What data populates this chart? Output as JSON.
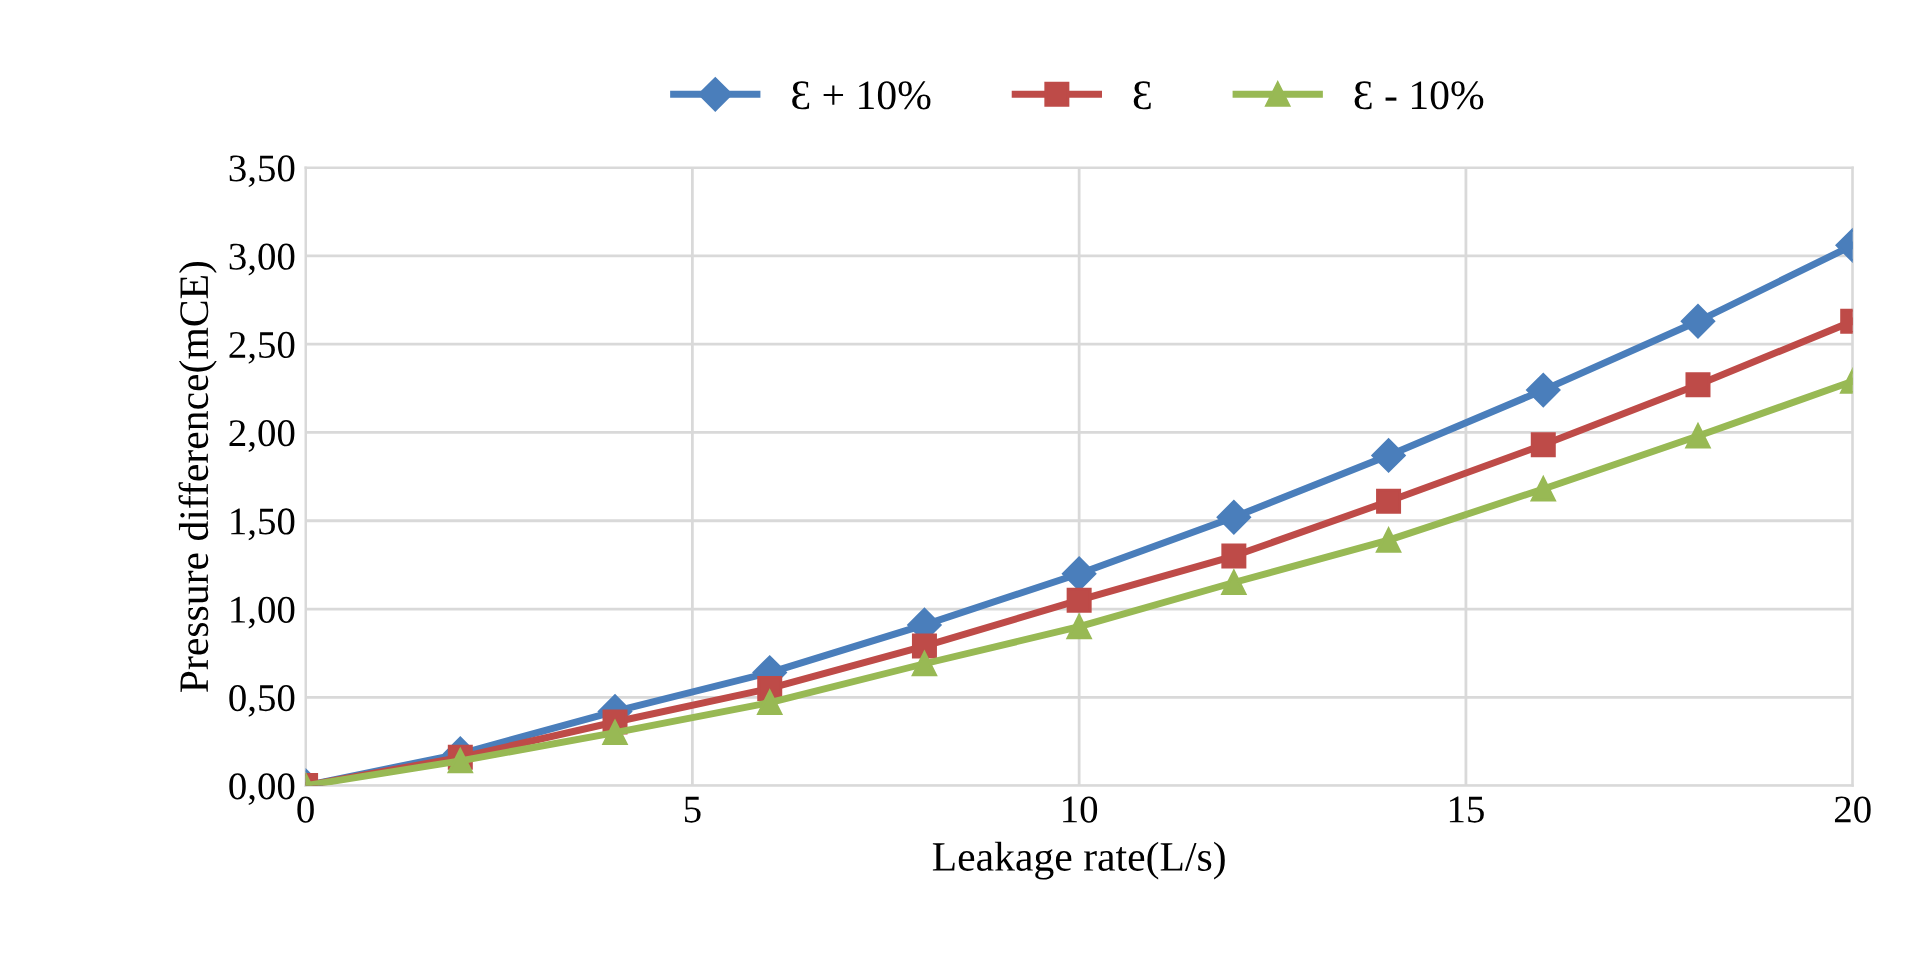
{
  "chart_data": {
    "type": "line",
    "xlabel": "Leakage rate(L/s)",
    "ylabel": "Pressure difference(mCE)",
    "x": [
      0,
      2,
      4,
      6,
      8,
      10,
      12,
      14,
      16,
      18,
      20
    ],
    "series": [
      {
        "name": "Ɛ + 10%",
        "color": "#4a7ebb",
        "marker": "diamond",
        "values": [
          0,
          0.18,
          0.42,
          0.64,
          0.91,
          1.2,
          1.52,
          1.87,
          2.24,
          2.63,
          3.06
        ]
      },
      {
        "name": "Ɛ",
        "color": "#be4b48",
        "marker": "square",
        "values": [
          0,
          0.16,
          0.36,
          0.55,
          0.79,
          1.05,
          1.3,
          1.61,
          1.93,
          2.27,
          2.63
        ]
      },
      {
        "name": "Ɛ - 10%",
        "color": "#98b954",
        "marker": "triangle",
        "values": [
          0,
          0.14,
          0.3,
          0.47,
          0.69,
          0.9,
          1.15,
          1.39,
          1.68,
          1.98,
          2.29
        ]
      }
    ],
    "xlim": [
      0,
      20
    ],
    "xticks": [
      0,
      5,
      10,
      15,
      20
    ],
    "ylim": [
      0,
      3.5
    ],
    "yticks": [
      {
        "value": 0,
        "label": "0,00"
      },
      {
        "value": 0.5,
        "label": "0,50"
      },
      {
        "value": 1,
        "label": "1,00"
      },
      {
        "value": 1.5,
        "label": "1,50"
      },
      {
        "value": 2,
        "label": "2,00"
      },
      {
        "value": 2.5,
        "label": "2,50"
      },
      {
        "value": 3,
        "label": "3,00"
      },
      {
        "value": 3.5,
        "label": "3,50"
      }
    ],
    "grid": true,
    "legend": "top",
    "line_style": "solid"
  }
}
